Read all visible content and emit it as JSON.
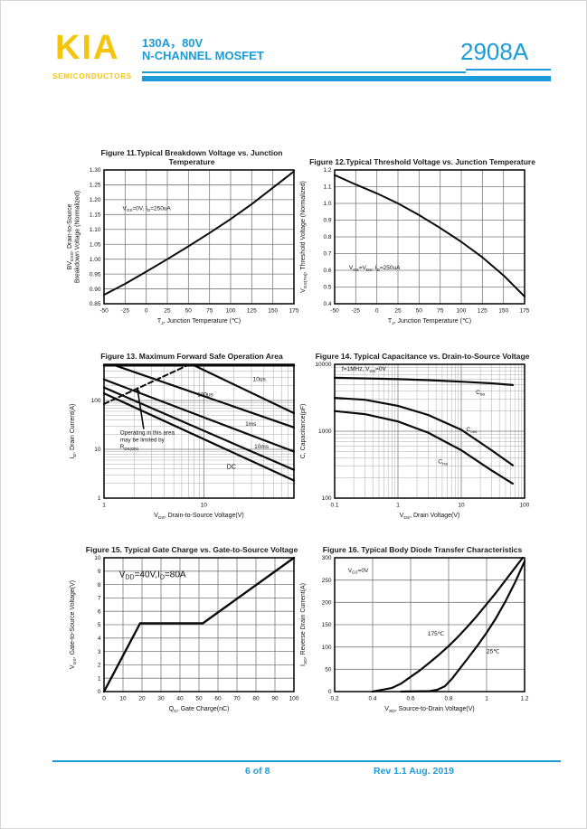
{
  "header": {
    "logo": "KIA",
    "logo_sub": "SEMICONDUCTORS",
    "rating": "130A，80V",
    "device_type": "N-CHANNEL MOSFET",
    "part_number": "2908A",
    "accent_color": "#1b9cd8",
    "logo_color": "#f6c40a"
  },
  "footer": {
    "page": "6 of 8",
    "rev": "Rev 1.1 Aug. 2019"
  },
  "chart_data": [
    {
      "name": "figure-11",
      "type": "line",
      "title": "Figure 11.Typical Breakdown Voltage vs. Junction Temperature",
      "xlabel": "T[J], Junction Temperature (℃)",
      "ylabel": [
        "BV[DSS], Drain-to-Source",
        "Breakdown Voltage (Normalized)"
      ],
      "xscale": "linear",
      "yscale": "linear",
      "xlim": [
        -50,
        175
      ],
      "ylim": [
        0.85,
        1.3
      ],
      "xticks": [
        -50,
        -25,
        0,
        25,
        50,
        75,
        100,
        125,
        150,
        175
      ],
      "yticks": [
        0.85,
        0.9,
        0.95,
        1.0,
        1.05,
        1.1,
        1.15,
        1.2,
        1.25,
        1.3
      ],
      "yticklabels": [
        "0.85",
        "0.90",
        "0.95",
        "1.00",
        "1.05",
        "1.10",
        "1.15",
        "1.20",
        "1.25",
        "1.30"
      ],
      "grid": true,
      "series": [
        {
          "name": "normalized-bvdss",
          "points": [
            [
              -50,
              0.88
            ],
            [
              -25,
              0.917
            ],
            [
              0,
              0.958
            ],
            [
              25,
              1.0
            ],
            [
              50,
              1.043
            ],
            [
              75,
              1.088
            ],
            [
              100,
              1.135
            ],
            [
              125,
              1.185
            ],
            [
              150,
              1.24
            ],
            [
              175,
              1.295
            ]
          ]
        }
      ],
      "annotations": [
        {
          "text": "V[GS]=0V, I[D]=250uA",
          "x": -28,
          "y": 1.165,
          "size": 6.5
        }
      ]
    },
    {
      "name": "figure-12",
      "type": "line",
      "title": "Figure 12.Typical Threshold Voltage vs. Junction Temperature",
      "xlabel": "T[J], Junction Temperature (℃)",
      "ylabel": [
        "V[GS(TH)], Threshold Voltage (Normalized)"
      ],
      "xscale": "linear",
      "yscale": "linear",
      "xlim": [
        -50,
        175
      ],
      "ylim": [
        0.4,
        1.2
      ],
      "xticks": [
        -50,
        -25,
        0,
        25,
        50,
        75,
        100,
        125,
        150,
        175
      ],
      "yticks": [
        0.4,
        0.5,
        0.6,
        0.7,
        0.8,
        0.9,
        1.0,
        1.1,
        1.2
      ],
      "yticklabels": [
        "0.4",
        "0.5",
        "0.6",
        "0.7",
        "0.8",
        "0.9",
        "1.0",
        "1.1",
        "1.2"
      ],
      "grid": true,
      "series": [
        {
          "name": "normalized-vgsth",
          "points": [
            [
              -50,
              1.17
            ],
            [
              -25,
              1.113
            ],
            [
              0,
              1.06
            ],
            [
              25,
              1.0
            ],
            [
              50,
              0.93
            ],
            [
              75,
              0.853
            ],
            [
              100,
              0.77
            ],
            [
              125,
              0.678
            ],
            [
              150,
              0.57
            ],
            [
              175,
              0.443
            ]
          ]
        }
      ],
      "annotations": [
        {
          "text": "V[GS]=V[DS], I[D]=250uA",
          "x": -33,
          "y": 0.605,
          "size": 6.5
        }
      ]
    },
    {
      "name": "figure-13",
      "type": "line",
      "title": "Figure 13. Maximum Forward Safe Operation Area",
      "xlabel": "V[DS], Drain-to-Source Voltage(V)",
      "ylabel": [
        "I[D], Drain Current(A)"
      ],
      "xscale": "log",
      "yscale": "log",
      "xlim": [
        1,
        80
      ],
      "ylim": [
        1,
        550
      ],
      "xticks": [
        1,
        10
      ],
      "xticklabels": [
        "1",
        "10"
      ],
      "yticks": [
        1,
        10,
        100
      ],
      "yticklabels": [
        "1",
        "10",
        "100"
      ],
      "grid": true,
      "series": [
        {
          "name": "rdson-limit",
          "dash": true,
          "width": 2,
          "points": [
            [
              1,
              85
            ],
            [
              6.8,
              520
            ]
          ]
        },
        {
          "name": "pulse-current-cap",
          "width": 2.5,
          "points": [
            [
              1,
              520
            ],
            [
              80,
              520
            ]
          ]
        },
        {
          "name": "10us",
          "width": 2.2,
          "points": [
            [
              8,
              520
            ],
            [
              80,
              55
            ]
          ]
        },
        {
          "name": "100us",
          "width": 2.2,
          "points": [
            [
              1.3,
              520
            ],
            [
              80,
              28
            ]
          ]
        },
        {
          "name": "1ms",
          "width": 2.2,
          "points": [
            [
              1,
              270
            ],
            [
              80,
              9
            ]
          ]
        },
        {
          "name": "10ms",
          "width": 2.2,
          "points": [
            [
              1,
              185
            ],
            [
              80,
              3.8
            ]
          ]
        },
        {
          "name": "dc",
          "width": 2.2,
          "points": [
            [
              1,
              140
            ],
            [
              80,
              2.3
            ]
          ]
        }
      ],
      "annotations": [
        {
          "text": "10us",
          "x": 31,
          "y": 250,
          "size": 6.5
        },
        {
          "text": "100us",
          "x": 8.6,
          "y": 120,
          "size": 6.5
        },
        {
          "text": "1ms",
          "x": 26,
          "y": 30,
          "size": 6.5
        },
        {
          "text": "10ms",
          "x": 32,
          "y": 10.5,
          "size": 6.5
        },
        {
          "text": "DC",
          "x": 17,
          "y": 4,
          "size": 7
        },
        {
          "text": "Operating in this area\nmay be limited by\nR[DS(ON)]",
          "x": 1.45,
          "y": 20,
          "size": 6.3
        },
        {
          "arrow": true,
          "from": [
            2.5,
            26
          ],
          "to": [
            2.15,
            185
          ]
        }
      ]
    },
    {
      "name": "figure-14",
      "type": "line",
      "title": "Figure 14. Typical Capacitance vs. Drain-to-Source Voltage",
      "xlabel": "V[DS], Drain Voltage(V)",
      "ylabel": [
        "C, Capacitance(pF)"
      ],
      "xscale": "log",
      "yscale": "log",
      "xlim": [
        0.1,
        100
      ],
      "ylim": [
        100,
        10000
      ],
      "xticks": [
        0.1,
        1,
        10,
        100
      ],
      "xticklabels": [
        "0.1",
        "1",
        "10",
        "100"
      ],
      "yticks": [
        100,
        1000,
        10000
      ],
      "yticklabels": [
        "100",
        "1000",
        "10000"
      ],
      "grid": true,
      "series": [
        {
          "name": "ciss",
          "width": 2.2,
          "points": [
            [
              0.1,
              6300
            ],
            [
              0.5,
              6100
            ],
            [
              1,
              6000
            ],
            [
              3,
              5800
            ],
            [
              10,
              5500
            ],
            [
              30,
              5200
            ],
            [
              65,
              4900
            ]
          ]
        },
        {
          "name": "coss",
          "width": 2.2,
          "points": [
            [
              0.1,
              3150
            ],
            [
              0.3,
              2950
            ],
            [
              1,
              2400
            ],
            [
              3,
              1750
            ],
            [
              10,
              1050
            ],
            [
              30,
              520
            ],
            [
              65,
              310
            ]
          ]
        },
        {
          "name": "crss",
          "width": 2.2,
          "points": [
            [
              0.1,
              2000
            ],
            [
              0.3,
              1800
            ],
            [
              1,
              1400
            ],
            [
              3,
              950
            ],
            [
              10,
              520
            ],
            [
              30,
              260
            ],
            [
              65,
              165
            ]
          ]
        }
      ],
      "annotations": [
        {
          "text": "f=1MHz, V[GS]=0V",
          "x": 0.13,
          "y": 8000,
          "size": 6.5
        },
        {
          "text": "C[iss]",
          "x": 17,
          "y": 3600,
          "size": 6.5
        },
        {
          "text": "C[oss]",
          "x": 12,
          "y": 1000,
          "size": 6.5
        },
        {
          "text": "C[rss]",
          "x": 4.3,
          "y": 330,
          "size": 6.5
        }
      ]
    },
    {
      "name": "figure-15",
      "type": "line",
      "title": "Figure 15. Typical Gate Charge vs. Gate-to-Source Voltage",
      "xlabel": "Q[G], Gate Charge(nC)",
      "ylabel": [
        "V[GS], Gate-to-Source Voltage(V)"
      ],
      "xscale": "linear",
      "yscale": "linear",
      "xlim": [
        0,
        100
      ],
      "ylim": [
        0,
        10
      ],
      "xticks": [
        0,
        10,
        20,
        30,
        40,
        50,
        60,
        70,
        80,
        90,
        100
      ],
      "yticks": [
        0,
        1,
        2,
        3,
        4,
        5,
        6,
        7,
        8,
        9,
        10
      ],
      "grid": true,
      "series": [
        {
          "name": "gate-charge",
          "width": 2.4,
          "points": [
            [
              0,
              0
            ],
            [
              19,
              5.1
            ],
            [
              52,
              5.1
            ],
            [
              100,
              10
            ]
          ]
        }
      ],
      "annotations": [
        {
          "text": "V[DD]=40V,I[D]=80A",
          "x": 8,
          "y": 8.55,
          "size": 10
        }
      ]
    },
    {
      "name": "figure-16",
      "type": "line",
      "title": "Figure 16. Typical Body Diode Transfer Characteristics",
      "xlabel": "V[SD], Source-to-Drain Voltage(V)",
      "ylabel": [
        "I[SD], Reverse Drain Current(A)"
      ],
      "xscale": "linear",
      "yscale": "linear",
      "xlim": [
        0.2,
        1.2
      ],
      "ylim": [
        0,
        300
      ],
      "xticks": [
        0.2,
        0.4,
        0.6,
        0.8,
        1.0,
        1.2
      ],
      "xticklabels": [
        "0.2",
        "0.4",
        "0.6",
        "0.8",
        "1",
        "1.2"
      ],
      "yticks": [
        0,
        50,
        100,
        150,
        200,
        250,
        300
      ],
      "grid": true,
      "series": [
        {
          "name": "175c",
          "width": 2.2,
          "points": [
            [
              0.4,
              0
            ],
            [
              0.5,
              8
            ],
            [
              0.55,
              18
            ],
            [
              0.6,
              33
            ],
            [
              0.65,
              48
            ],
            [
              0.7,
              65
            ],
            [
              0.75,
              83
            ],
            [
              0.8,
              102
            ],
            [
              0.85,
              123
            ],
            [
              0.9,
              146
            ],
            [
              0.95,
              170
            ],
            [
              1.0,
              196
            ],
            [
              1.05,
              222
            ],
            [
              1.1,
              250
            ],
            [
              1.15,
              278
            ],
            [
              1.19,
              300
            ]
          ]
        },
        {
          "name": "25c",
          "width": 2.2,
          "points": [
            [
              0.55,
              0
            ],
            [
              0.7,
              1
            ],
            [
              0.74,
              4
            ],
            [
              0.78,
              12
            ],
            [
              0.82,
              30
            ],
            [
              0.86,
              52
            ],
            [
              0.9,
              74
            ],
            [
              0.95,
              102
            ],
            [
              1.0,
              132
            ],
            [
              1.05,
              165
            ],
            [
              1.1,
              203
            ],
            [
              1.15,
              245
            ],
            [
              1.2,
              292
            ]
          ]
        }
      ],
      "annotations": [
        {
          "text": "V[GS]=0V",
          "x": 0.27,
          "y": 268,
          "size": 6.5
        },
        {
          "text": "175℃",
          "x": 0.69,
          "y": 126,
          "size": 6.5
        },
        {
          "text": "25℃",
          "x": 1.0,
          "y": 86,
          "size": 6.5
        }
      ]
    }
  ]
}
